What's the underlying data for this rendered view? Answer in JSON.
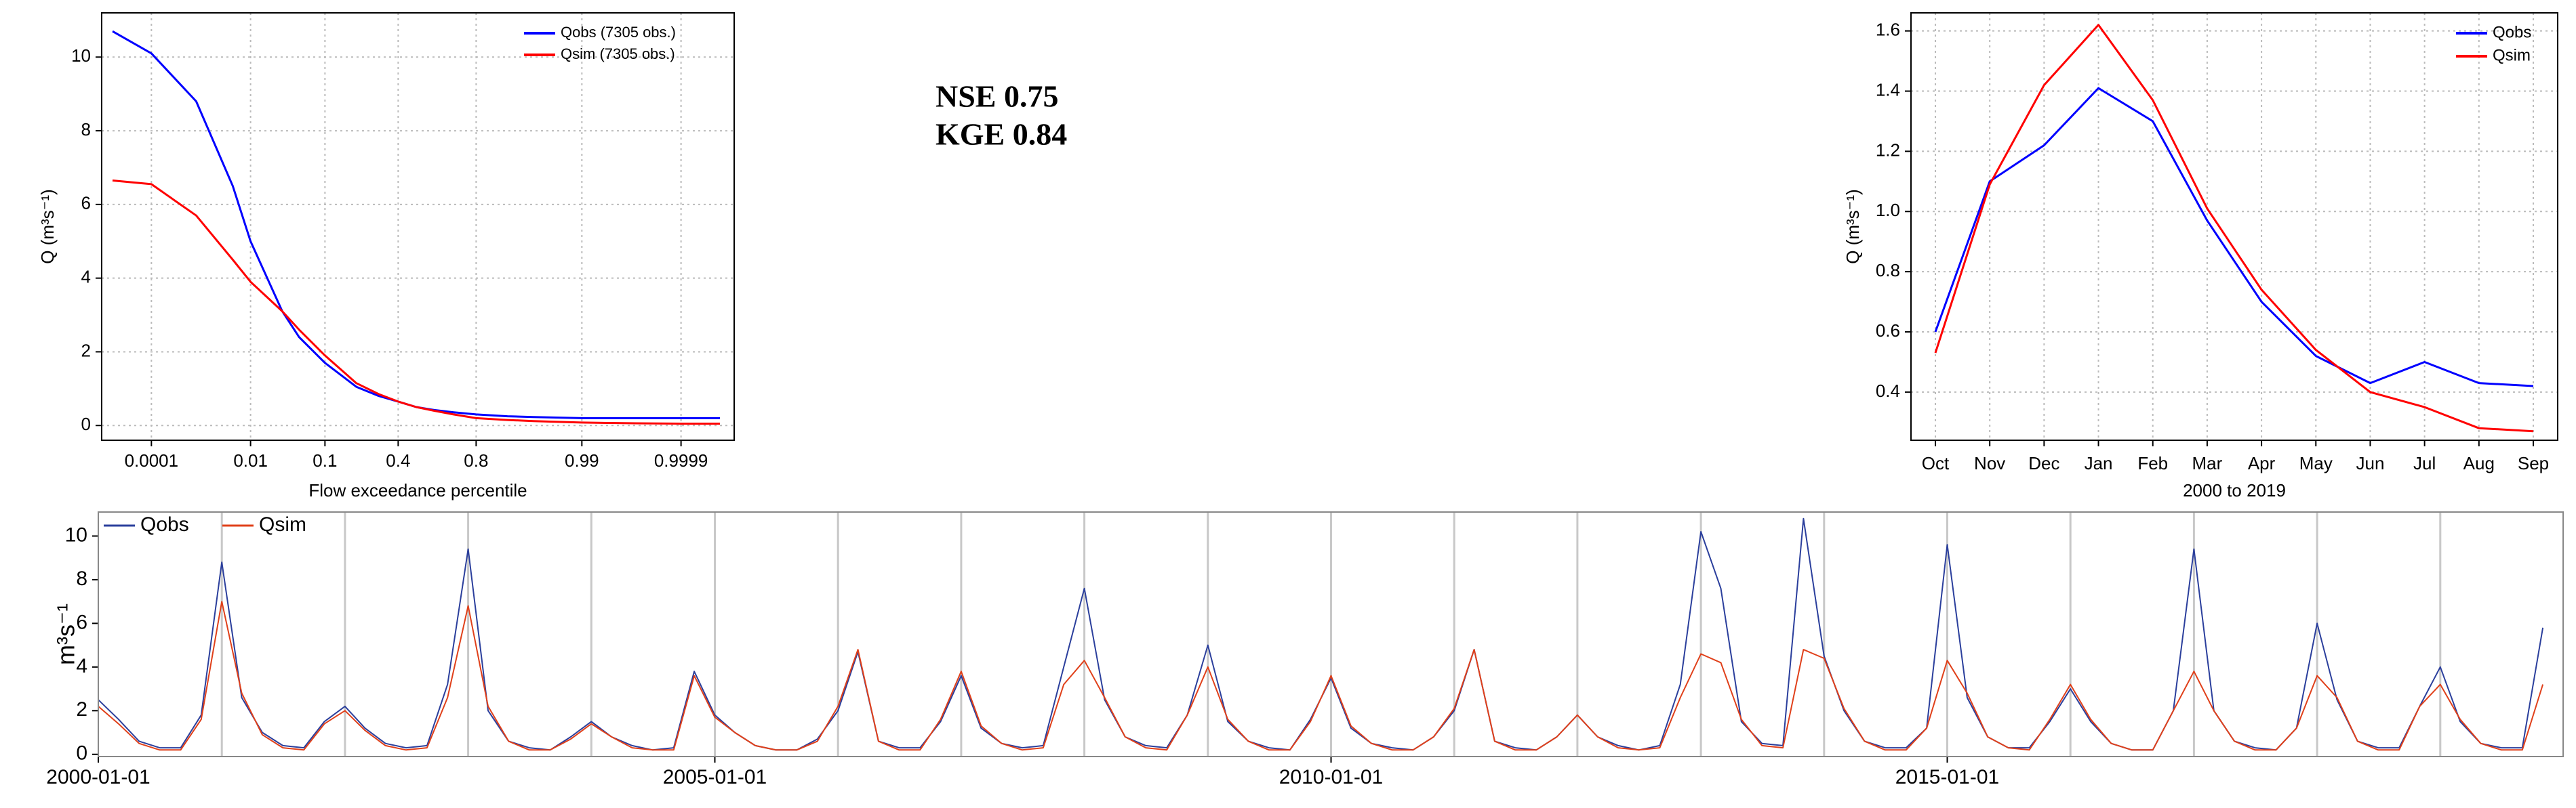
{
  "annotations": [
    "NSE 0.75",
    "KGE 0.84"
  ],
  "chart_data": [
    {
      "type": "line",
      "xlabel": "Flow exceedance percentile",
      "ylabel": "Q (m³s⁻¹)",
      "xscale": "probit",
      "x": [
        1e-05,
        0.0001,
        0.001,
        0.005,
        0.01,
        0.03,
        0.05,
        0.1,
        0.2,
        0.3,
        0.4,
        0.5,
        0.6,
        0.7,
        0.8,
        0.9,
        0.95,
        0.99,
        0.999,
        0.9999,
        0.99999
      ],
      "series": [
        {
          "name": "Qobs (7305 obs.)",
          "color": "#0000ff",
          "values": [
            10.7,
            10.1,
            8.8,
            6.5,
            5.0,
            3.1,
            2.4,
            1.7,
            1.05,
            0.8,
            0.65,
            0.5,
            0.42,
            0.36,
            0.3,
            0.25,
            0.23,
            0.2,
            0.2,
            0.2,
            0.2
          ]
        },
        {
          "name": "Qsim (7305 obs.)",
          "color": "#ff0000",
          "values": [
            6.65,
            6.55,
            5.7,
            4.5,
            3.9,
            3.1,
            2.6,
            1.9,
            1.15,
            0.85,
            0.65,
            0.5,
            0.4,
            0.3,
            0.2,
            0.15,
            0.12,
            0.08,
            0.06,
            0.05,
            0.05
          ]
        }
      ],
      "xlim": [
        5e-06,
        0.999996
      ],
      "xticks": [
        0.0001,
        0.01,
        0.1,
        0.4,
        0.8,
        0.99,
        0.9999
      ],
      "ylim": [
        -0.4,
        11.2
      ],
      "yticks": [
        0,
        2,
        4,
        6,
        8,
        10
      ],
      "grid": true,
      "legend": "top-right"
    },
    {
      "type": "line",
      "xlabel": "2000 to 2019",
      "ylabel": "Q (m³s⁻¹)",
      "categories": [
        "Oct",
        "Nov",
        "Dec",
        "Jan",
        "Feb",
        "Mar",
        "Apr",
        "May",
        "Jun",
        "Jul",
        "Aug",
        "Sep"
      ],
      "series": [
        {
          "name": "Qobs",
          "color": "#0000ff",
          "values": [
            0.6,
            1.1,
            1.22,
            1.41,
            1.3,
            0.97,
            0.7,
            0.52,
            0.43,
            0.5,
            0.43,
            0.42
          ]
        },
        {
          "name": "Qsim",
          "color": "#ff0000",
          "values": [
            0.53,
            1.09,
            1.42,
            1.62,
            1.37,
            1.01,
            0.74,
            0.54,
            0.4,
            0.35,
            0.28,
            0.27
          ]
        }
      ],
      "ylim": [
        0.24,
        1.66
      ],
      "yticks": [
        0.4,
        0.6,
        0.8,
        {
          "value": 1,
          "label": "1.0"
        },
        1.2,
        1.4,
        1.6
      ],
      "grid": true,
      "legend": "top-right"
    },
    {
      "type": "line",
      "ylabel": "m³s⁻¹",
      "xscale": "time",
      "x": [
        "2000-01-01",
        "2000-03-01",
        "2000-05-01",
        "2000-07-01",
        "2000-09-01",
        "2000-11-01",
        "2001-01-01",
        "2001-03-01",
        "2001-05-01",
        "2001-07-01",
        "2001-09-01",
        "2001-11-01",
        "2002-01-01",
        "2002-03-01",
        "2002-05-01",
        "2002-07-01",
        "2002-09-01",
        "2002-11-01",
        "2003-01-01",
        "2003-03-01",
        "2003-05-01",
        "2003-07-01",
        "2003-09-01",
        "2003-11-01",
        "2004-01-01",
        "2004-03-01",
        "2004-05-01",
        "2004-07-01",
        "2004-09-01",
        "2004-11-01",
        "2005-01-01",
        "2005-03-01",
        "2005-05-01",
        "2005-07-01",
        "2005-09-01",
        "2005-11-01",
        "2006-01-01",
        "2006-03-01",
        "2006-05-01",
        "2006-07-01",
        "2006-09-01",
        "2006-11-01",
        "2007-01-01",
        "2007-03-01",
        "2007-05-01",
        "2007-07-01",
        "2007-09-01",
        "2007-11-01",
        "2008-01-01",
        "2008-03-01",
        "2008-05-01",
        "2008-07-01",
        "2008-09-01",
        "2008-11-01",
        "2009-01-01",
        "2009-03-01",
        "2009-05-01",
        "2009-07-01",
        "2009-09-01",
        "2009-11-01",
        "2010-01-01",
        "2010-03-01",
        "2010-05-01",
        "2010-07-01",
        "2010-09-01",
        "2010-11-01",
        "2011-01-01",
        "2011-03-01",
        "2011-05-01",
        "2011-07-01",
        "2011-09-01",
        "2011-11-01",
        "2012-01-01",
        "2012-03-01",
        "2012-05-01",
        "2012-07-01",
        "2012-09-01",
        "2012-11-01",
        "2013-01-01",
        "2013-03-01",
        "2013-05-01",
        "2013-07-01",
        "2013-09-01",
        "2013-11-01",
        "2014-01-01",
        "2014-03-01",
        "2014-05-01",
        "2014-07-01",
        "2014-09-01",
        "2014-11-01",
        "2015-01-01",
        "2015-03-01",
        "2015-05-01",
        "2015-07-01",
        "2015-09-01",
        "2015-11-01",
        "2016-01-01",
        "2016-03-01",
        "2016-05-01",
        "2016-07-01",
        "2016-09-01",
        "2016-11-01",
        "2017-01-01",
        "2017-03-01",
        "2017-05-01",
        "2017-07-01",
        "2017-09-01",
        "2017-11-01",
        "2018-01-01",
        "2018-03-01",
        "2018-05-01",
        "2018-07-01",
        "2018-09-01",
        "2018-11-01",
        "2019-01-01",
        "2019-03-01",
        "2019-05-01",
        "2019-07-01",
        "2019-09-01",
        "2019-11-01"
      ],
      "series": [
        {
          "name": "Qobs",
          "color": "#2b3f9c",
          "values": [
            2.5,
            1.6,
            0.6,
            0.3,
            0.3,
            1.8,
            8.8,
            2.6,
            1.0,
            0.4,
            0.3,
            1.5,
            2.2,
            1.2,
            0.5,
            0.3,
            0.4,
            3.2,
            9.4,
            2.0,
            0.6,
            0.3,
            0.2,
            0.8,
            1.5,
            0.8,
            0.4,
            0.2,
            0.3,
            3.8,
            1.8,
            1.0,
            0.4,
            0.2,
            0.2,
            0.7,
            2.0,
            4.7,
            0.6,
            0.3,
            0.3,
            1.5,
            3.6,
            1.2,
            0.5,
            0.3,
            0.4,
            4.0,
            7.6,
            2.5,
            0.8,
            0.4,
            0.3,
            1.8,
            5.0,
            1.5,
            0.6,
            0.3,
            0.2,
            1.6,
            3.5,
            1.2,
            0.5,
            0.3,
            0.2,
            0.8,
            2.0,
            4.8,
            0.6,
            0.3,
            0.2,
            0.8,
            1.8,
            0.8,
            0.4,
            0.2,
            0.4,
            3.2,
            10.2,
            7.6,
            1.5,
            0.5,
            0.4,
            10.8,
            4.5,
            2.0,
            0.6,
            0.3,
            0.3,
            1.2,
            9.6,
            2.6,
            0.8,
            0.3,
            0.3,
            1.5,
            3.0,
            1.5,
            0.5,
            0.2,
            0.2,
            2.0,
            9.4,
            2.0,
            0.6,
            0.3,
            0.2,
            1.2,
            6.0,
            2.5,
            0.6,
            0.3,
            0.3,
            2.2,
            4.0,
            1.5,
            0.5,
            0.3,
            0.3,
            5.8
          ]
        },
        {
          "name": "Qsim",
          "color": "#e0401a",
          "values": [
            2.2,
            1.4,
            0.5,
            0.2,
            0.2,
            1.6,
            7.0,
            2.8,
            0.9,
            0.3,
            0.2,
            1.4,
            2.0,
            1.1,
            0.4,
            0.2,
            0.3,
            2.6,
            6.8,
            2.2,
            0.6,
            0.2,
            0.2,
            0.7,
            1.4,
            0.8,
            0.3,
            0.2,
            0.2,
            3.6,
            1.7,
            1.0,
            0.4,
            0.2,
            0.2,
            0.6,
            2.2,
            4.8,
            0.6,
            0.2,
            0.2,
            1.6,
            3.8,
            1.3,
            0.5,
            0.2,
            0.3,
            3.2,
            4.3,
            2.6,
            0.8,
            0.3,
            0.2,
            1.8,
            4.0,
            1.6,
            0.6,
            0.2,
            0.2,
            1.5,
            3.6,
            1.3,
            0.5,
            0.2,
            0.2,
            0.8,
            2.1,
            4.8,
            0.6,
            0.2,
            0.2,
            0.8,
            1.8,
            0.8,
            0.3,
            0.2,
            0.3,
            2.6,
            4.6,
            4.2,
            1.6,
            0.4,
            0.3,
            4.8,
            4.4,
            2.1,
            0.6,
            0.2,
            0.2,
            1.2,
            4.3,
            2.8,
            0.8,
            0.3,
            0.2,
            1.6,
            3.2,
            1.6,
            0.5,
            0.2,
            0.2,
            2.0,
            3.8,
            2.0,
            0.6,
            0.2,
            0.2,
            1.2,
            3.6,
            2.6,
            0.6,
            0.2,
            0.2,
            2.2,
            3.2,
            1.6,
            0.5,
            0.2,
            0.2,
            3.2
          ]
        }
      ],
      "xlim": [
        "2000-01-01",
        "2019-12-31"
      ],
      "xticks": [
        "2000-01-01",
        "2005-01-01",
        "2010-01-01",
        "2015-01-01"
      ],
      "xminor": [
        "2001-01-01",
        "2002-01-01",
        "2003-01-01",
        "2004-01-01",
        "2005-01-01",
        "2006-01-01",
        "2007-01-01",
        "2008-01-01",
        "2009-01-01",
        "2010-01-01",
        "2011-01-01",
        "2012-01-01",
        "2013-01-01",
        "2014-01-01",
        "2015-01-01",
        "2016-01-01",
        "2017-01-01",
        "2018-01-01",
        "2019-01-01"
      ],
      "ylim": [
        -0.1,
        11.1
      ],
      "yticks": [
        0,
        2,
        4,
        6,
        8,
        10
      ],
      "legend": "top-left"
    }
  ]
}
